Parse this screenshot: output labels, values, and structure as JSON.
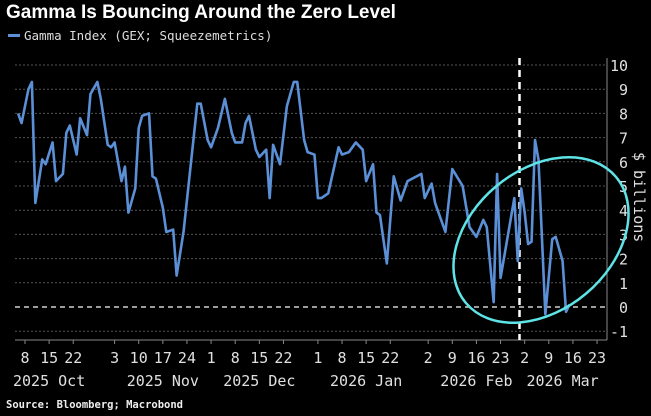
{
  "chart_data": {
    "type": "line",
    "title": "Gamma Is Bouncing Around the Zero Level",
    "legend": [
      "Gamma Index (GEX; Squeezemetrics)"
    ],
    "legend_placement": "top-left",
    "ylabel": "$ billions",
    "ylim": [
      -1,
      10
    ],
    "yticks": [
      -1,
      0,
      1,
      2,
      3,
      4,
      5,
      6,
      7,
      8,
      9,
      10
    ],
    "grid": true,
    "x_units": "days since 2025-10-08",
    "xticks": [
      {
        "day": 0,
        "label": "8"
      },
      {
        "day": 7,
        "label": "15"
      },
      {
        "day": 14,
        "label": "22"
      },
      {
        "day": 26,
        "label": "3"
      },
      {
        "day": 33,
        "label": "10"
      },
      {
        "day": 40,
        "label": "17"
      },
      {
        "day": 47,
        "label": "24"
      },
      {
        "day": 54,
        "label": "1"
      },
      {
        "day": 61,
        "label": "8"
      },
      {
        "day": 68,
        "label": "15"
      },
      {
        "day": 75,
        "label": "22"
      },
      {
        "day": 85,
        "label": "1"
      },
      {
        "day": 92,
        "label": "8"
      },
      {
        "day": 99,
        "label": "15"
      },
      {
        "day": 106,
        "label": "22"
      },
      {
        "day": 117,
        "label": "2"
      },
      {
        "day": 124,
        "label": "9"
      },
      {
        "day": 131,
        "label": "16"
      },
      {
        "day": 138,
        "label": "23"
      },
      {
        "day": 145,
        "label": "2"
      },
      {
        "day": 152,
        "label": "9"
      },
      {
        "day": 159,
        "label": "16"
      },
      {
        "day": 166,
        "label": "23"
      }
    ],
    "month_labels": [
      {
        "day": 7,
        "label": "2025 Oct"
      },
      {
        "day": 40,
        "label": "2025 Nov"
      },
      {
        "day": 68,
        "label": "2025 Dec"
      },
      {
        "day": 99,
        "label": "2026 Jan"
      },
      {
        "day": 131,
        "label": "2026 Feb"
      },
      {
        "day": 156,
        "label": "2026 Mar"
      }
    ],
    "vline_day": 143.5,
    "series": [
      {
        "name": "Gamma Index (GEX; Squeezemetrics)",
        "color": "#5b8fd6",
        "x": [
          -2,
          -1,
          1,
          2,
          3,
          5,
          6,
          8,
          9,
          11,
          12,
          13,
          15,
          16,
          18,
          19,
          21,
          22,
          24,
          25,
          26,
          28,
          29,
          30,
          32,
          33,
          34,
          36,
          37,
          38,
          40,
          41,
          43,
          44,
          46,
          50,
          51,
          53,
          54,
          56,
          58,
          60,
          61,
          63,
          64,
          65,
          67,
          68,
          70,
          71,
          72,
          74,
          76,
          78,
          79,
          81,
          82,
          84,
          85,
          86,
          88,
          91,
          92,
          94,
          96,
          98,
          99,
          101,
          102,
          103,
          105,
          107,
          109,
          111,
          115,
          116,
          118,
          119,
          122,
          124,
          127,
          129,
          131,
          133,
          134,
          136,
          137,
          138,
          142,
          143,
          144,
          145,
          146,
          147,
          148,
          149,
          151,
          153,
          154,
          156,
          157,
          158
        ],
        "values": [
          8.0,
          7.6,
          9.0,
          9.3,
          4.3,
          6.1,
          5.9,
          6.8,
          5.2,
          5.5,
          7.2,
          7.5,
          6.3,
          7.8,
          7.1,
          8.8,
          9.3,
          8.6,
          6.7,
          6.6,
          6.8,
          5.2,
          5.8,
          3.9,
          4.9,
          7.4,
          7.9,
          8.0,
          5.4,
          5.3,
          4.1,
          3.1,
          3.2,
          1.3,
          3.1,
          8.4,
          8.4,
          6.9,
          6.6,
          7.4,
          8.6,
          7.2,
          6.8,
          6.8,
          7.6,
          7.9,
          6.5,
          6.2,
          6.5,
          4.5,
          6.7,
          5.9,
          8.3,
          9.3,
          9.3,
          6.9,
          6.4,
          6.3,
          4.5,
          4.5,
          4.7,
          6.6,
          6.3,
          6.4,
          6.8,
          6.5,
          5.2,
          5.9,
          3.9,
          3.8,
          1.8,
          5.4,
          4.4,
          5.2,
          5.5,
          4.5,
          5.1,
          4.3,
          3.1,
          5.7,
          5.0,
          3.3,
          2.9,
          3.6,
          3.3,
          0.2,
          5.5,
          1.2,
          4.5,
          1.9,
          4.9,
          3.9,
          2.6,
          2.7,
          6.9,
          6.1,
          -0.3,
          2.8,
          2.9,
          1.9,
          -0.2,
          0.1
        ]
      }
    ],
    "annotation_color": "#5ee3e6"
  },
  "source": "Source: Bloomberg; Macrobond"
}
